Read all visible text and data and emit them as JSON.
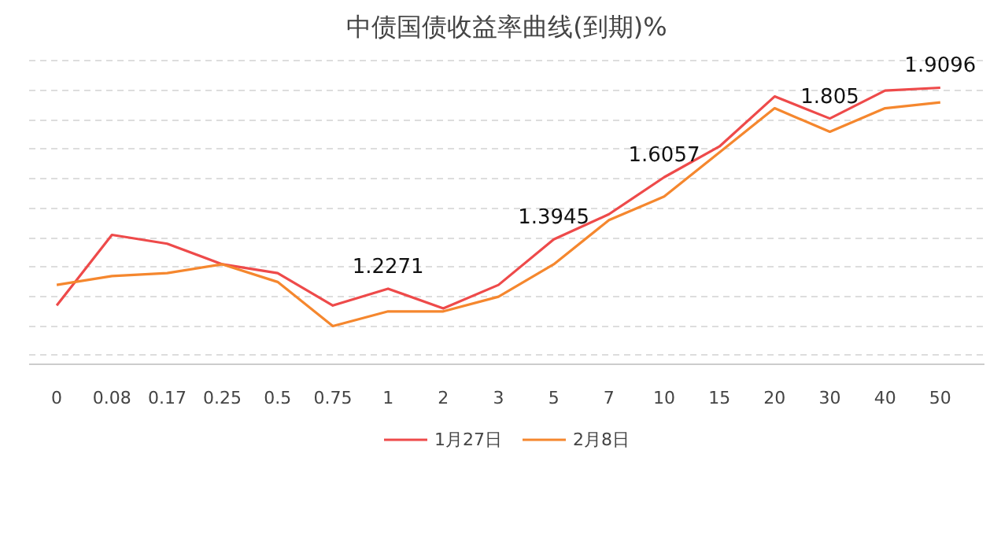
{
  "chart_data": {
    "type": "line",
    "title": "中债国债收益率曲线(到期)%",
    "categories": [
      "0",
      "0.08",
      "0.17",
      "0.25",
      "0.5",
      "0.75",
      "1",
      "2",
      "3",
      "5",
      "7",
      "10",
      "15",
      "20",
      "30",
      "40",
      "50"
    ],
    "series": [
      {
        "name": "1月27日",
        "color": "#ee4a4a",
        "values": [
          1.17,
          1.41,
          1.38,
          1.31,
          1.28,
          1.17,
          1.2271,
          1.16,
          1.24,
          1.3945,
          1.48,
          1.6057,
          1.71,
          1.88,
          1.805,
          1.9,
          1.9096
        ],
        "value_labels": [
          null,
          null,
          null,
          null,
          null,
          null,
          "1.2271",
          null,
          null,
          "1.3945",
          null,
          "1.6057",
          null,
          null,
          "1.805",
          null,
          "1.9096"
        ]
      },
      {
        "name": "2月8日",
        "color": "#f5872e",
        "values": [
          1.24,
          1.27,
          1.28,
          1.31,
          1.25,
          1.1,
          1.15,
          1.15,
          1.2,
          1.31,
          1.46,
          1.54,
          1.69,
          1.84,
          1.76,
          1.84,
          1.86
        ]
      }
    ],
    "tick_labels": "x",
    "grid": "y",
    "legend": "bottom",
    "marker": "none",
    "line_style": "solid"
  }
}
